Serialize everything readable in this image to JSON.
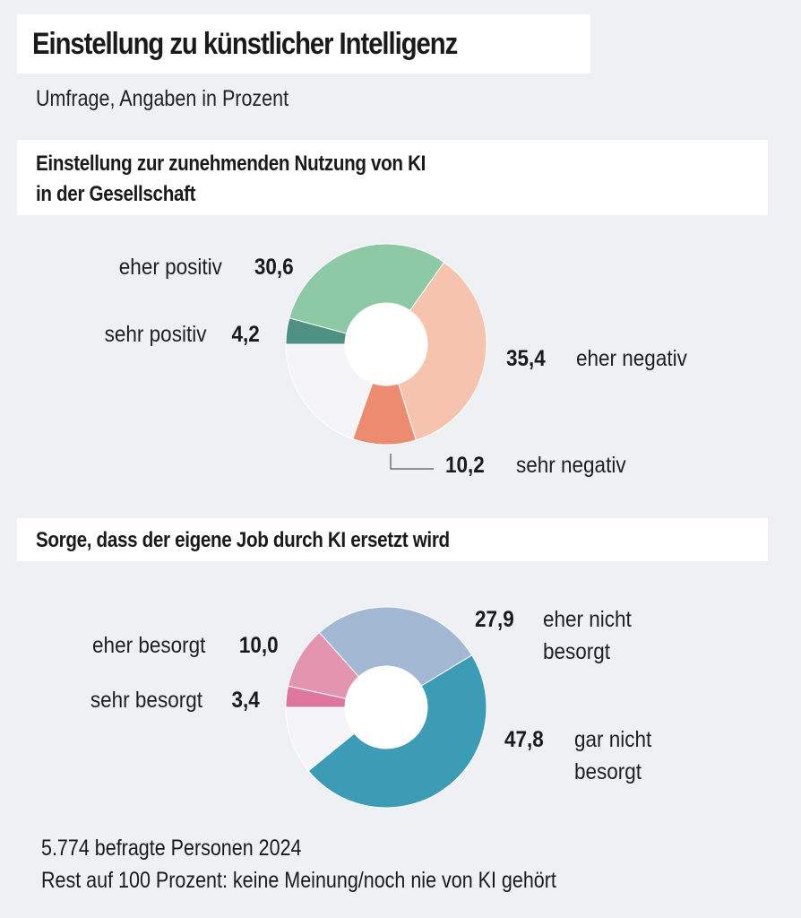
{
  "title": "Einstellung zu künstlicher Intelligenz",
  "subtitle": "Umfrage, Angaben in Prozent",
  "footer": {
    "line1": "5.774 befragte Personen 2024",
    "line2": "Rest auf 100 Prozent: keine Meinung/noch nie von KI gehört"
  },
  "chart_data": [
    {
      "type": "pie",
      "variant": "donut",
      "title_line1": "Einstellung zur zunehmenden Nutzung von KI",
      "title_line2": "in der Gesellschaft",
      "unit": "%",
      "start": "9 o'clock, clockwise",
      "slices": [
        {
          "label": "sehr positiv",
          "value": 4.2,
          "value_text": "4,2",
          "color": "#4e9182"
        },
        {
          "label": "eher positiv",
          "value": 30.6,
          "value_text": "30,6",
          "color": "#8cc9a4"
        },
        {
          "label": "eher negativ",
          "value": 35.4,
          "value_text": "35,4",
          "color": "#f6c3ae"
        },
        {
          "label": "sehr negativ",
          "value": 10.2,
          "value_text": "10,2",
          "color": "#ec8b6f"
        },
        {
          "label": "Rest",
          "value": 19.6,
          "value_text": "",
          "color": "#f5f5f7"
        }
      ]
    },
    {
      "type": "pie",
      "variant": "donut",
      "title_line1": "Sorge, dass der eigene Job durch KI ersetzt wird",
      "unit": "%",
      "start": "9 o'clock, clockwise",
      "slices": [
        {
          "label": "sehr besorgt",
          "value": 3.4,
          "value_text": "3,4",
          "color": "#dd779d"
        },
        {
          "label": "eher besorgt",
          "value": 10.0,
          "value_text": "10,0",
          "color": "#e394ae"
        },
        {
          "label": "eher nicht besorgt",
          "label_line1": "eher nicht",
          "label_line2": "besorgt",
          "value": 27.9,
          "value_text": "27,9",
          "color": "#a3b8d3"
        },
        {
          "label": "gar nicht besorgt",
          "label_line1": "gar nicht",
          "label_line2": "besorgt",
          "value": 47.8,
          "value_text": "47,8",
          "color": "#3d9cb5"
        },
        {
          "label": "Rest",
          "value": 10.9,
          "value_text": "",
          "color": "#f5f5f7"
        }
      ]
    }
  ]
}
